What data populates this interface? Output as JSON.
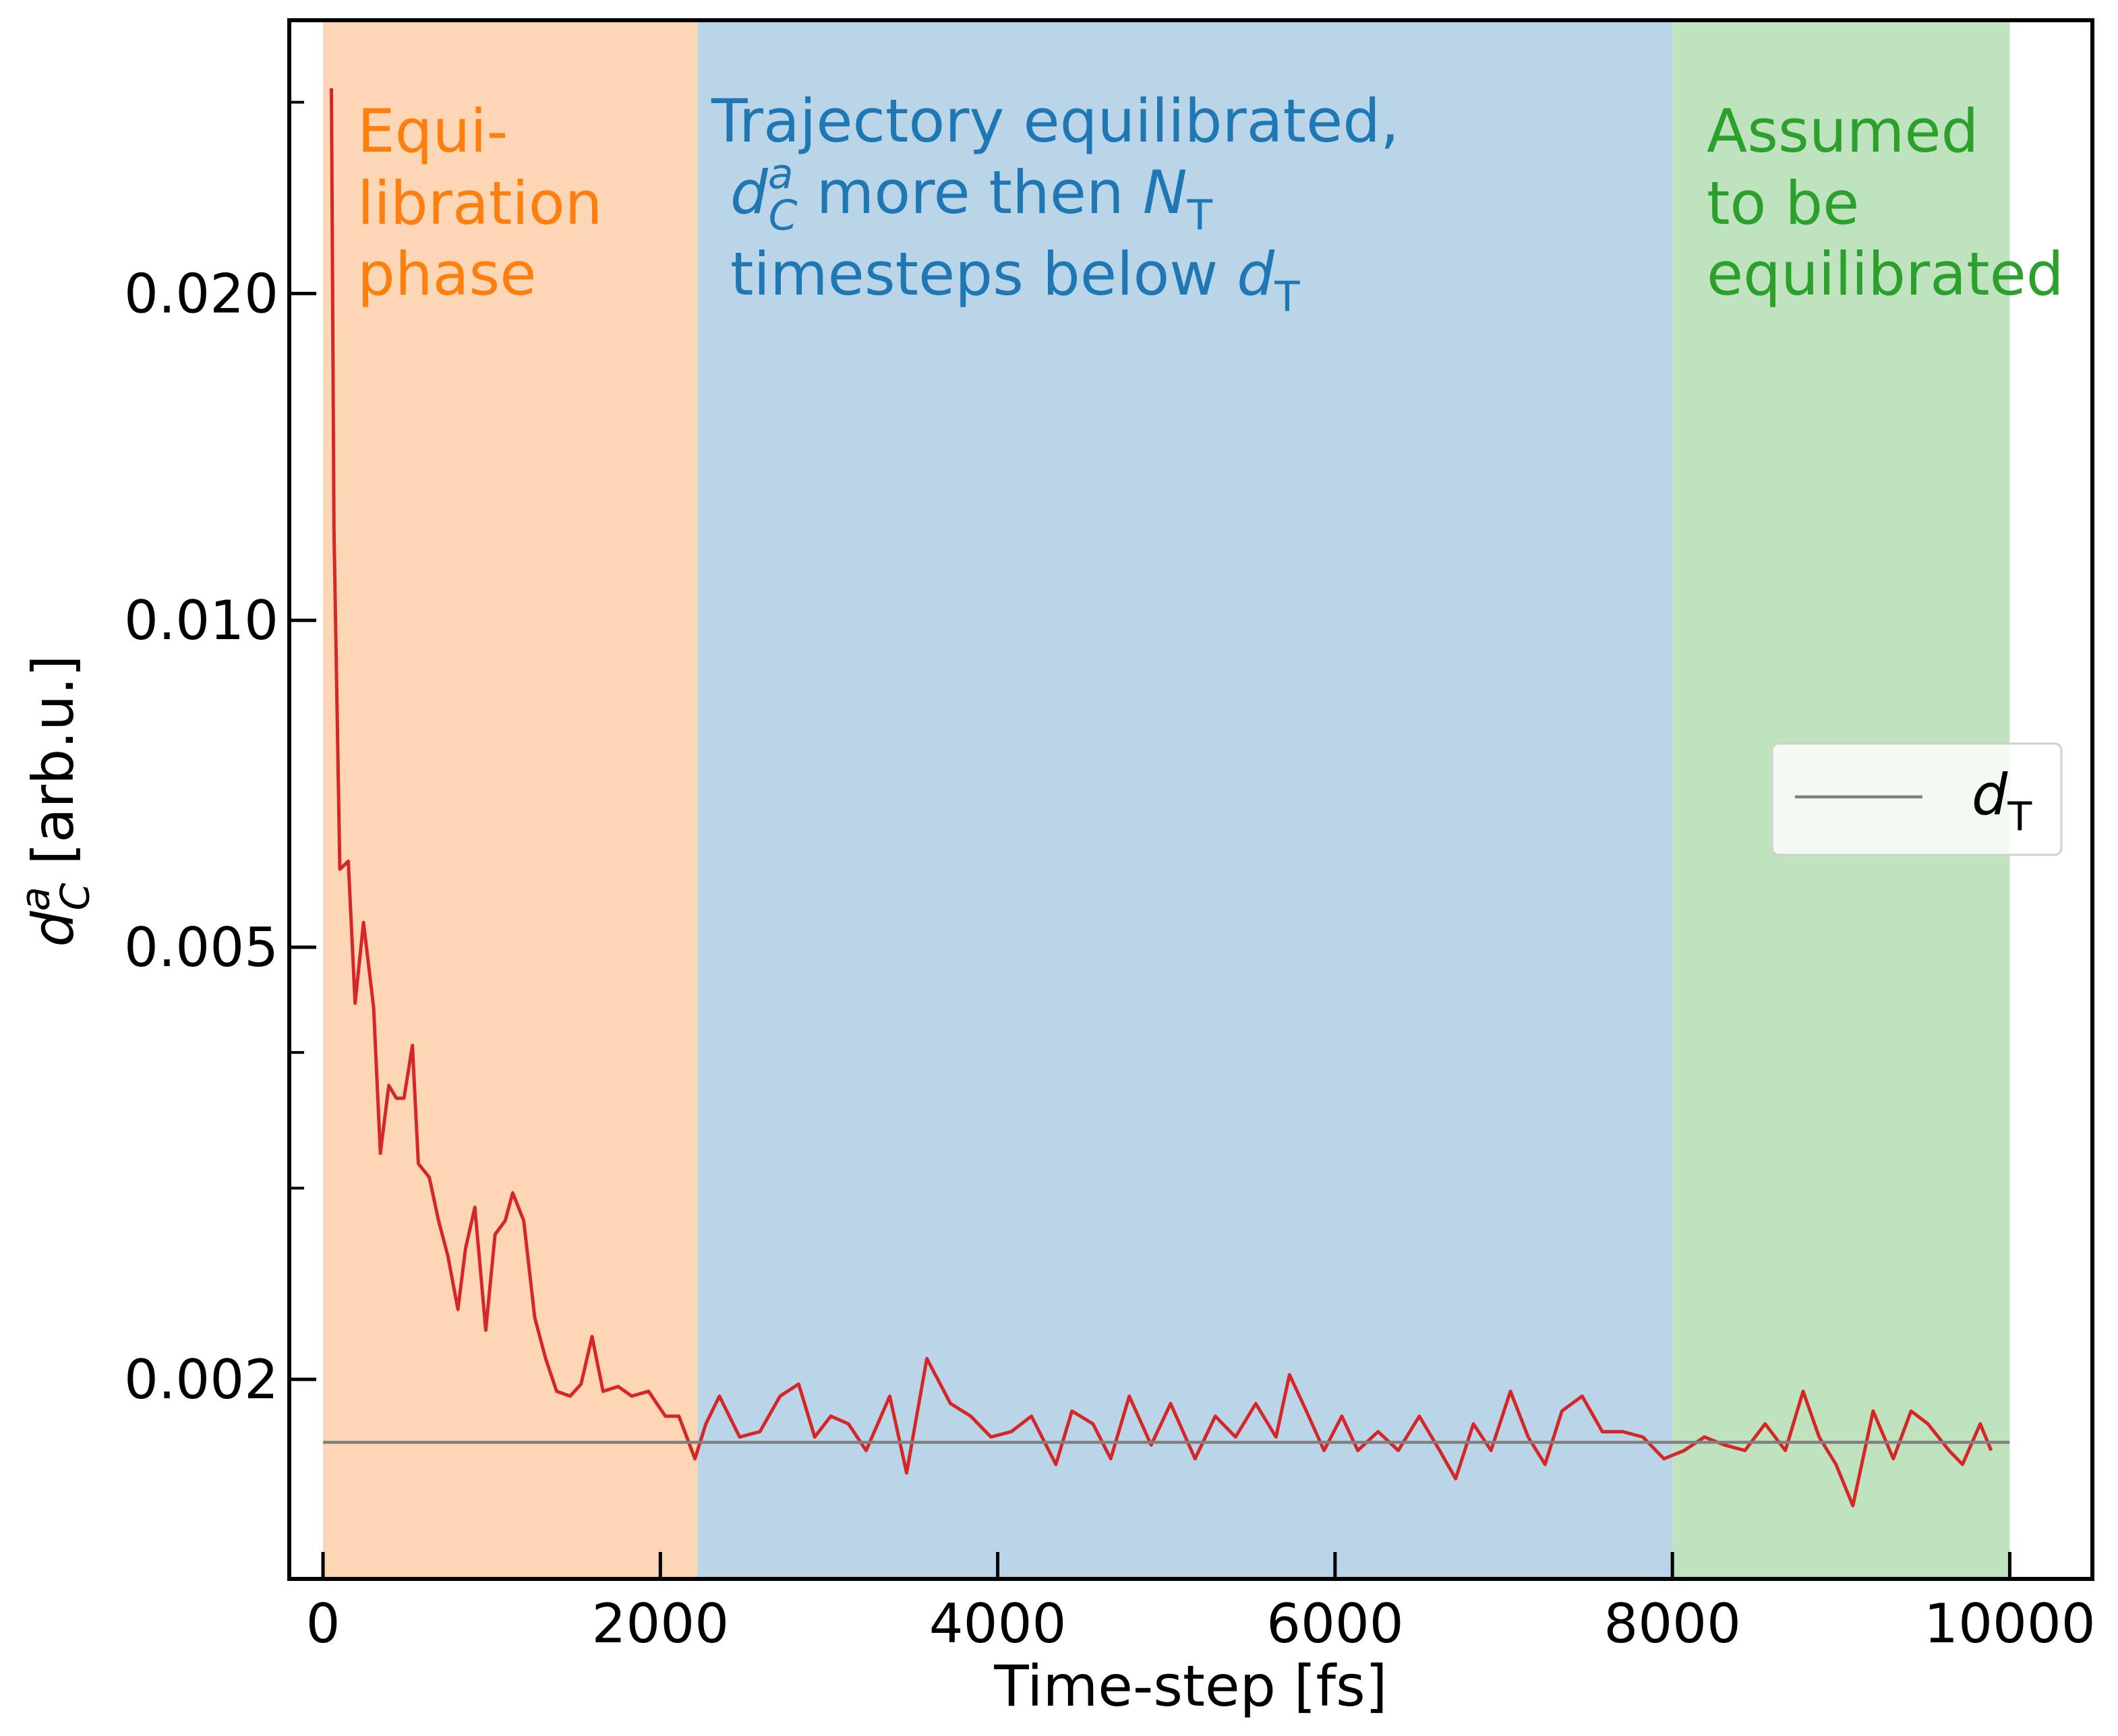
{
  "chart_data": {
    "type": "line",
    "xlabel": "Time-step [fs]",
    "ylabel": [
      {
        "text": "d",
        "italic": true
      },
      {
        "text": "a",
        "italic": true,
        "sup": true
      },
      {
        "text": "C",
        "italic": true,
        "sub": true
      },
      {
        "text": " [arb.u.]"
      }
    ],
    "xlim": [
      -200,
      10490
    ],
    "xticks": [
      0,
      2000,
      4000,
      6000,
      8000,
      10000
    ],
    "ylim": [
      0.00131,
      0.0357
    ],
    "log_y": true,
    "yticks": [
      0.002,
      0.005,
      {
        "value": 0.01,
        "label": "0.010"
      },
      {
        "value": 0.02,
        "label": "0.020"
      }
    ],
    "minor_yticks": [
      0.003,
      0.004,
      0.03
    ],
    "spans": [
      {
        "x0": 0,
        "x1": 2220,
        "color": "#fdd7b5"
      },
      {
        "x0": 2220,
        "x1": 8000,
        "color": "#bad5e8"
      },
      {
        "x0": 8000,
        "x1": 10000,
        "color": "#bfe3bf"
      }
    ],
    "annotations": [
      {
        "color": "#ff7f0e",
        "lines": [
          [
            {
              "text": "Equi-"
            }
          ],
          [
            {
              "text": "libration"
            }
          ],
          [
            {
              "text": "phase"
            }
          ]
        ]
      },
      {
        "color": "#1f77b4",
        "lines": [
          [
            {
              "text": "Trajectory equilibrated,"
            }
          ],
          [
            {
              "text": "d",
              "italic": true
            },
            {
              "text": "a",
              "italic": true,
              "sup": true
            },
            {
              "text": "C",
              "italic": true,
              "sub": true
            },
            {
              "text": " more then "
            },
            {
              "text": "N",
              "italic": true
            },
            {
              "text": "T",
              "sub": true
            }
          ],
          [
            {
              "text": "timesteps below "
            },
            {
              "text": "d",
              "italic": true
            },
            {
              "text": "T",
              "sub": true
            }
          ]
        ]
      },
      {
        "color": "#2ca02c",
        "lines": [
          [
            {
              "text": "Assumed"
            }
          ],
          [
            {
              "text": "to be"
            }
          ],
          [
            {
              "text": "equilibrated"
            }
          ]
        ]
      }
    ],
    "legend": "center right",
    "series": [
      {
        "color": "#d62728",
        "x": [
          50,
          65,
          100,
          150,
          190,
          240,
          300,
          340,
          390,
          435,
          480,
          530,
          565,
          630,
          685,
          740,
          800,
          845,
          900,
          965,
          1020,
          1080,
          1125,
          1190,
          1255,
          1320,
          1385,
          1465,
          1530,
          1595,
          1660,
          1750,
          1830,
          1930,
          2030,
          2110,
          2205,
          2270,
          2350,
          2470,
          2590,
          2710,
          2820,
          2915,
          3010,
          3115,
          3220,
          3360,
          3460,
          3580,
          3720,
          3840,
          3960,
          4080,
          4200,
          4345,
          4440,
          4565,
          4670,
          4780,
          4910,
          5025,
          5170,
          5290,
          5410,
          5530,
          5650,
          5730,
          5830,
          5935,
          6040,
          6135,
          6255,
          6375,
          6500,
          6620,
          6715,
          6820,
          6925,
          7040,
          7145,
          7245,
          7345,
          7465,
          7585,
          7705,
          7825,
          7950,
          8070,
          8190,
          8310,
          8430,
          8550,
          8670,
          8775,
          8870,
          8970,
          9070,
          9190,
          9310,
          9415,
          9515,
          9640,
          9720,
          9825,
          9890
        ],
        "values": [
          0.0309,
          0.0121,
          0.0059,
          0.006,
          0.00444,
          0.00527,
          0.0044,
          0.00323,
          0.00373,
          0.00363,
          0.00363,
          0.00406,
          0.00316,
          0.00307,
          0.0028,
          0.0026,
          0.00232,
          0.00264,
          0.00288,
          0.00222,
          0.00272,
          0.0028,
          0.00297,
          0.0028,
          0.00228,
          0.00209,
          0.00195,
          0.00193,
          0.00198,
          0.00219,
          0.00195,
          0.00197,
          0.00193,
          0.00195,
          0.00185,
          0.00185,
          0.00169,
          0.00182,
          0.00193,
          0.00177,
          0.00179,
          0.00193,
          0.00198,
          0.00177,
          0.00185,
          0.00182,
          0.00172,
          0.00193,
          0.00164,
          0.00209,
          0.0019,
          0.00185,
          0.00177,
          0.00179,
          0.00185,
          0.00167,
          0.00187,
          0.00182,
          0.00169,
          0.00193,
          0.00174,
          0.0019,
          0.00169,
          0.00185,
          0.00177,
          0.0019,
          0.00177,
          0.00202,
          0.00187,
          0.00172,
          0.00185,
          0.00172,
          0.00179,
          0.00172,
          0.00185,
          0.00172,
          0.00162,
          0.00182,
          0.00172,
          0.00195,
          0.00177,
          0.00167,
          0.00187,
          0.00193,
          0.00179,
          0.00179,
          0.00177,
          0.00169,
          0.00172,
          0.00177,
          0.00174,
          0.00172,
          0.00182,
          0.00172,
          0.00195,
          0.00177,
          0.00167,
          0.00153,
          0.00187,
          0.00169,
          0.00187,
          0.00182,
          0.00172,
          0.00167,
          0.00182,
          0.00172
        ]
      },
      {
        "name": [
          {
            "text": "d",
            "italic": true
          },
          {
            "text": "T",
            "sub": true
          }
        ],
        "color": "#808080",
        "x": [
          0,
          10000
        ],
        "values": [
          0.00175,
          0.00175
        ]
      }
    ]
  }
}
